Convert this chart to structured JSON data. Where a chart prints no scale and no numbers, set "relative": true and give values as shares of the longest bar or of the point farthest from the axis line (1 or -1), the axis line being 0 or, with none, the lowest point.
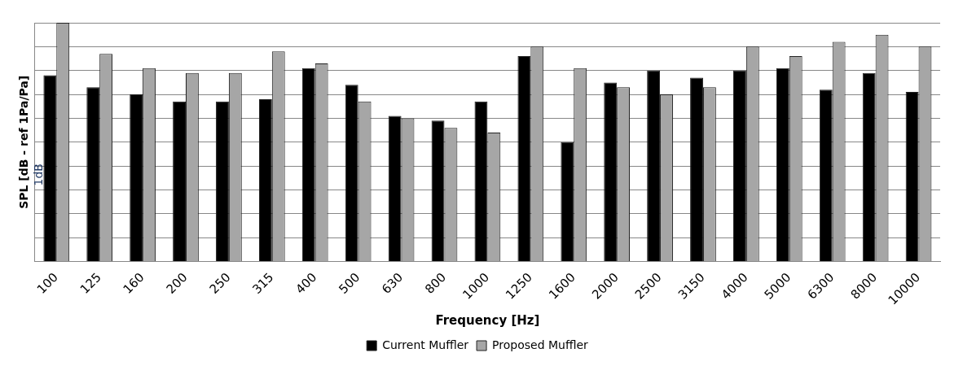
{
  "chart_data": {
    "type": "bar",
    "relative": true,
    "ylabel": "SPL [dB - ref 1Pa/Pa]",
    "xlabel": "Frequency [Hz]",
    "annotations": [
      "1dB"
    ],
    "categories": [
      "100",
      "125",
      "160",
      "200",
      "250",
      "315",
      "400",
      "500",
      "630",
      "800",
      "1000",
      "1250",
      "1600",
      "2000",
      "2500",
      "3150",
      "4000",
      "5000",
      "6300",
      "8000",
      "10000"
    ],
    "series": [
      {
        "name": "Current Muffler",
        "color": "#000000",
        "values": [
          0.78,
          0.73,
          0.7,
          0.67,
          0.67,
          0.68,
          0.81,
          0.74,
          0.61,
          0.59,
          0.67,
          0.86,
          0.5,
          0.75,
          0.8,
          0.77,
          0.8,
          0.81,
          0.72,
          0.79,
          0.71
        ]
      },
      {
        "name": "Proposed Muffler",
        "color": "#a6a6a6",
        "values": [
          1,
          0.87,
          0.81,
          0.79,
          0.79,
          0.88,
          0.83,
          0.67,
          0.6,
          0.56,
          0.54,
          0.9,
          0.81,
          0.73,
          0.7,
          0.73,
          0.9,
          0.86,
          0.92,
          0.95,
          0.9
        ]
      }
    ],
    "grid": "y",
    "legend": "bottom"
  }
}
